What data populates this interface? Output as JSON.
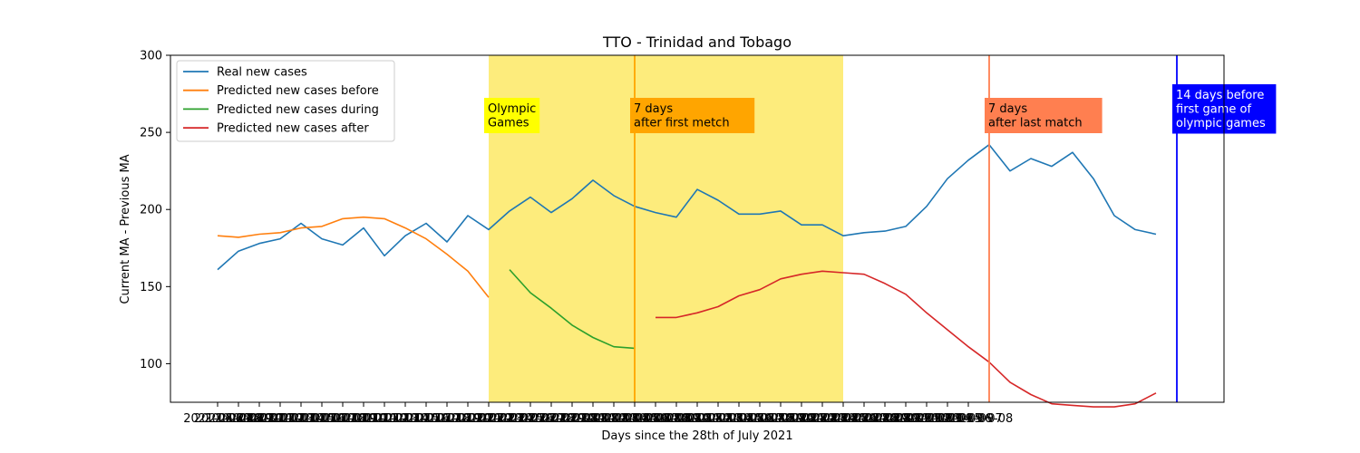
{
  "chart_data": {
    "type": "line",
    "title": "TTO - Trinidad and Tobago",
    "xlabel": "Days since the 28th of July 2021",
    "ylabel": "Current MA - Previous MA",
    "ylim": [
      75,
      300
    ],
    "yticks": [
      100,
      150,
      200,
      250,
      300
    ],
    "grid": false,
    "legend_position": "top-left",
    "x_tick_labels": [
      "2021-06-27",
      "2021-06-28",
      "2021-06-29",
      "2021-06-30",
      "2021-07-01",
      "2021-07-02",
      "2021-07-03",
      "2021-07-04",
      "2021-07-05",
      "2021-07-06",
      "2021-07-07",
      "2021-07-08",
      "2021-07-09",
      "2021-07-10",
      "2021-07-11",
      "2021-07-12",
      "2021-07-13",
      "2021-07-14",
      "2021-07-15",
      "2021-07-16",
      "2021-07-17",
      "2021-07-18",
      "2021-07-19",
      "2021-07-20",
      "2021-07-21",
      "2021-07-22",
      "2021-07-23",
      "2021-07-24",
      "2021-07-25",
      "2021-07-26",
      "2021-07-27",
      "2021-07-28",
      "2021-07-29",
      "2021-07-30",
      "2021-07-31",
      "2021-08-01",
      "2021-08-02",
      "2021-08-03",
      "2021-08-04",
      "2021-08-05",
      "2021-08-06",
      "2021-08-07",
      "2021-08-08",
      "2021-08-09",
      "2021-08-10",
      "2021-08-11",
      "2021-08-12",
      "2021-08-13",
      "2021-08-14",
      "2021-08-15",
      "2021-08-16",
      "2021-08-17",
      "2021-08-18",
      "2021-08-19",
      "2021-08-20",
      "2021-08-21",
      "2021-08-22",
      "2021-08-23",
      "2021-08-24",
      "2021-08-25",
      "2021-08-26",
      "2021-08-27",
      "2021-08-28",
      "2021-08-29",
      "2021-08-30",
      "2021-08-31",
      "2021-09-01",
      "2021-09-02",
      "2021-09-03",
      "2021-09-04",
      "2021-09-05",
      "2021-09-06",
      "2021-09-07",
      "2021-09-08"
    ],
    "x_tick_every": 2,
    "x_tick_start": 0,
    "x_range": [
      0,
      49
    ],
    "series": [
      {
        "name": "Real new cases",
        "color": "#1f77b4",
        "x_start": 0,
        "values": [
          161,
          173,
          178,
          181,
          191,
          181,
          177,
          188,
          170,
          183,
          191,
          179,
          196,
          187,
          199,
          208,
          198,
          207,
          219,
          209,
          202,
          198,
          195,
          213,
          206,
          197,
          197,
          199,
          190,
          190,
          183,
          185,
          186,
          189,
          202,
          220,
          232,
          242,
          225,
          233,
          228,
          237,
          220,
          196,
          187,
          184
        ]
      },
      {
        "name": "Predicted new cases before",
        "color": "#ff7f0e",
        "x_start": 0,
        "values": [
          183,
          182,
          184,
          185,
          188,
          189,
          194,
          195,
          194,
          188,
          181,
          171,
          160,
          143
        ]
      },
      {
        "name": "Predicted new cases during",
        "color": "#2ca02c",
        "x_start": 14,
        "values": [
          161,
          146,
          136,
          125,
          117,
          111,
          110
        ]
      },
      {
        "name": "Predicted new cases after",
        "color": "#d62728",
        "x_start": 21,
        "values": [
          130,
          130,
          133,
          137,
          144,
          148,
          155,
          158,
          160,
          159,
          158,
          152,
          145,
          133,
          122,
          111,
          101,
          88,
          80,
          74,
          73,
          72,
          72,
          74,
          81
        ]
      }
    ],
    "span": {
      "x_from": 13,
      "x_to": 30,
      "color": "#fdec7c"
    },
    "vlines": [
      {
        "x": 20,
        "color": "#ffa500"
      },
      {
        "x": 37,
        "color": "#ff7f50"
      },
      {
        "x": 46,
        "color": "#0000ff"
      }
    ],
    "annotations": [
      {
        "x": 13,
        "lines": [
          "Olympic",
          "Games"
        ],
        "bg": "#ffff00",
        "fg": "#000000"
      },
      {
        "x": 20,
        "lines": [
          "7 days",
          "after first metch"
        ],
        "bg": "#ffa500",
        "fg": "#000000"
      },
      {
        "x": 37,
        "lines": [
          "7 days",
          "after last match"
        ],
        "bg": "#ff7f50",
        "fg": "#000000"
      },
      {
        "x": 46,
        "lines": [
          "14 days before",
          "first game of",
          "olympic games"
        ],
        "bg": "#0000ff",
        "fg": "#ffffff"
      }
    ]
  }
}
